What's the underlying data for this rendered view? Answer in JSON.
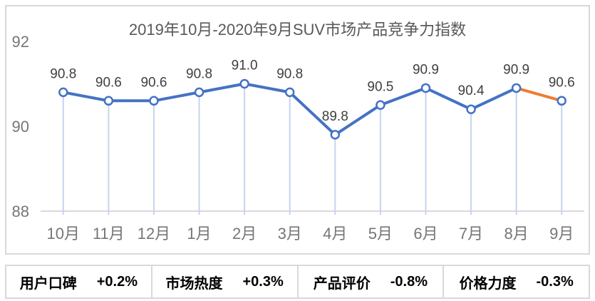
{
  "chart_data": {
    "type": "line",
    "title": "2019年10月-2020年9月SUV市场产品竞争力指数",
    "categories": [
      "10月",
      "11月",
      "12月",
      "1月",
      "2月",
      "3月",
      "4月",
      "5月",
      "6月",
      "7月",
      "8月",
      "9月"
    ],
    "values": [
      90.8,
      90.6,
      90.6,
      90.8,
      91.0,
      90.8,
      89.8,
      90.5,
      90.9,
      90.4,
      90.9,
      90.6
    ],
    "ylim": [
      88,
      92
    ],
    "yticks": [
      92,
      90,
      88
    ],
    "grid": "off",
    "legend": "none",
    "marker_style": "open-circle",
    "drop_lines": "on",
    "highlight_last_segment": true,
    "colors": {
      "line": "#4472C4",
      "last_segment": "#ED7D31",
      "marker_fill": "#FFFFFF",
      "drop_line": "#C5D4ED",
      "axis_line": "#D9D9D9",
      "title_text": "#595959",
      "axis_text": "#767676",
      "data_label_text": "#3F3F3F"
    }
  },
  "stats_bar": {
    "items": [
      {
        "label": "用户口碑",
        "value": "+0.2%"
      },
      {
        "label": "市场热度",
        "value": "+0.3%"
      },
      {
        "label": "产品评价",
        "value": "-0.8%"
      },
      {
        "label": "价格力度",
        "value": "-0.3%"
      }
    ],
    "text_color": "#000000",
    "border_color": "#D9D9D9"
  }
}
